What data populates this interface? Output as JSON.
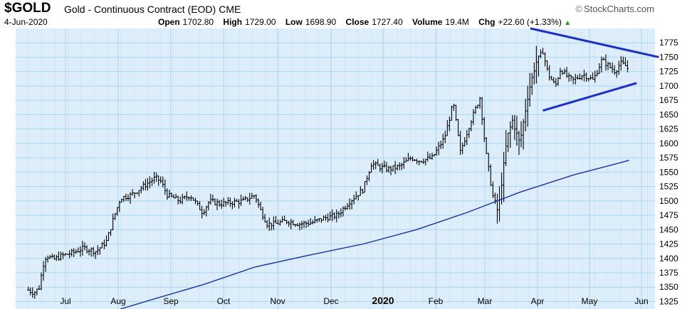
{
  "header": {
    "symbol": "$GOLD",
    "name": "Gold - Continuous Contract (EOD)",
    "exchange": "CME",
    "date": "4-Jun-2020",
    "brand": "StockCharts.com",
    "brand_icon": "copyright-icon",
    "quote": [
      {
        "label": "Open",
        "value": "1702.80"
      },
      {
        "label": "High",
        "value": "1729.00"
      },
      {
        "label": "Low",
        "value": "1698.90"
      },
      {
        "label": "Close",
        "value": "1727.40"
      },
      {
        "label": "Volume",
        "value": "19.4M"
      },
      {
        "label": "Chg",
        "value": "+22.60 (+1.33%)",
        "icon": "up-triangle-icon"
      }
    ]
  },
  "colors": {
    "background": "#ddeefa",
    "grid": "#a9d6f3",
    "price_bars": "#000000",
    "moving_average": "#1a2fb5",
    "trendlines": "#1b2ed6",
    "change_up": "#1aa01a"
  },
  "chart_data": {
    "type": "bar",
    "subtype": "ohlc",
    "x_ticks": [
      "Jul",
      "Aug",
      "Sep",
      "Oct",
      "Nov",
      "Dec",
      "2020",
      "Feb",
      "Mar",
      "Apr",
      "May",
      "Jun"
    ],
    "y_ticks": [
      1325,
      1350,
      1375,
      1400,
      1425,
      1450,
      1475,
      1500,
      1525,
      1550,
      1575,
      1600,
      1625,
      1650,
      1675,
      1700,
      1725,
      1750,
      1775
    ],
    "ylim": [
      1312,
      1800
    ],
    "y_axis_position": "right",
    "grid": true,
    "close_series": {
      "name": "",
      "points": [
        [
          "Jun-12",
          1345
        ],
        [
          "Jun-18",
          1340
        ],
        [
          "Jun-24",
          1350
        ],
        [
          "Jun-27",
          1385
        ],
        [
          "Jul-01",
          1405
        ],
        [
          "Jul-05",
          1398
        ],
        [
          "Jul-10",
          1405
        ],
        [
          "Jul-16",
          1410
        ],
        [
          "Jul-22",
          1418
        ],
        [
          "Jul-29",
          1412
        ],
        [
          "Aug-05",
          1430
        ],
        [
          "Aug-09",
          1470
        ],
        [
          "Aug-13",
          1505
        ],
        [
          "Aug-19",
          1510
        ],
        [
          "Aug-26",
          1525
        ],
        [
          "Sep-03",
          1540
        ],
        [
          "Sep-06",
          1535
        ],
        [
          "Sep-10",
          1510
        ],
        [
          "Sep-17",
          1500
        ],
        [
          "Sep-23",
          1510
        ],
        [
          "Sep-30",
          1480
        ],
        [
          "Oct-04",
          1500
        ],
        [
          "Oct-10",
          1495
        ],
        [
          "Oct-17",
          1497
        ],
        [
          "Oct-24",
          1500
        ],
        [
          "Oct-31",
          1510
        ],
        [
          "Nov-04",
          1485
        ],
        [
          "Nov-08",
          1460
        ],
        [
          "Nov-12",
          1460
        ],
        [
          "Nov-19",
          1465
        ],
        [
          "Nov-26",
          1460
        ],
        [
          "Dec-03",
          1462
        ],
        [
          "Dec-10",
          1470
        ],
        [
          "Dec-17",
          1475
        ],
        [
          "Dec-24",
          1500
        ],
        [
          "Dec-31",
          1520
        ],
        [
          "Jan-06",
          1565
        ],
        [
          "Jan-10",
          1560
        ],
        [
          "Jan-16",
          1555
        ],
        [
          "Jan-23",
          1560
        ],
        [
          "Jan-30",
          1575
        ],
        [
          "Feb-05",
          1570
        ],
        [
          "Feb-12",
          1575
        ],
        [
          "Feb-19",
          1610
        ],
        [
          "Feb-24",
          1670
        ],
        [
          "Feb-28",
          1585
        ],
        [
          "Mar-04",
          1640
        ],
        [
          "Mar-09",
          1680
        ],
        [
          "Mar-12",
          1590
        ],
        [
          "Mar-16",
          1510
        ],
        [
          "Mar-19",
          1480
        ],
        [
          "Mar-24",
          1610
        ],
        [
          "Mar-27",
          1640
        ],
        [
          "Mar-31",
          1600
        ],
        [
          "Apr-06",
          1690
        ],
        [
          "Apr-10",
          1740
        ],
        [
          "Apr-14",
          1760
        ],
        [
          "Apr-17",
          1720
        ],
        [
          "Apr-21",
          1700
        ],
        [
          "Apr-24",
          1730
        ],
        [
          "Apr-28",
          1715
        ],
        [
          "May-01",
          1710
        ],
        [
          "May-07",
          1720
        ],
        [
          "May-13",
          1710
        ],
        [
          "May-18",
          1745
        ],
        [
          "May-22",
          1735
        ],
        [
          "May-26",
          1725
        ],
        [
          "May-29",
          1740
        ],
        [
          "Jun-02",
          1735
        ],
        [
          "Jun-04",
          1727
        ]
      ]
    },
    "moving_average": {
      "name": "",
      "points": [
        [
          "Aug-13",
          1312
        ],
        [
          "Sep-03",
          1330
        ],
        [
          "Oct-01",
          1355
        ],
        [
          "Nov-01",
          1385
        ],
        [
          "Dec-01",
          1405
        ],
        [
          "Jan-01",
          1425
        ],
        [
          "Feb-03",
          1450
        ],
        [
          "Mar-02",
          1480
        ],
        [
          "Apr-01",
          1515
        ],
        [
          "May-01",
          1545
        ],
        [
          "Jun-01",
          1568
        ],
        [
          "Jun-04",
          1571
        ]
      ]
    },
    "trendlines": [
      {
        "start": [
          "Apr-07",
          1800
        ],
        "end": [
          "Jun-20",
          1750
        ]
      },
      {
        "start": [
          "Apr-14",
          1657
        ],
        "end": [
          "Jun-08",
          1705
        ]
      }
    ]
  }
}
